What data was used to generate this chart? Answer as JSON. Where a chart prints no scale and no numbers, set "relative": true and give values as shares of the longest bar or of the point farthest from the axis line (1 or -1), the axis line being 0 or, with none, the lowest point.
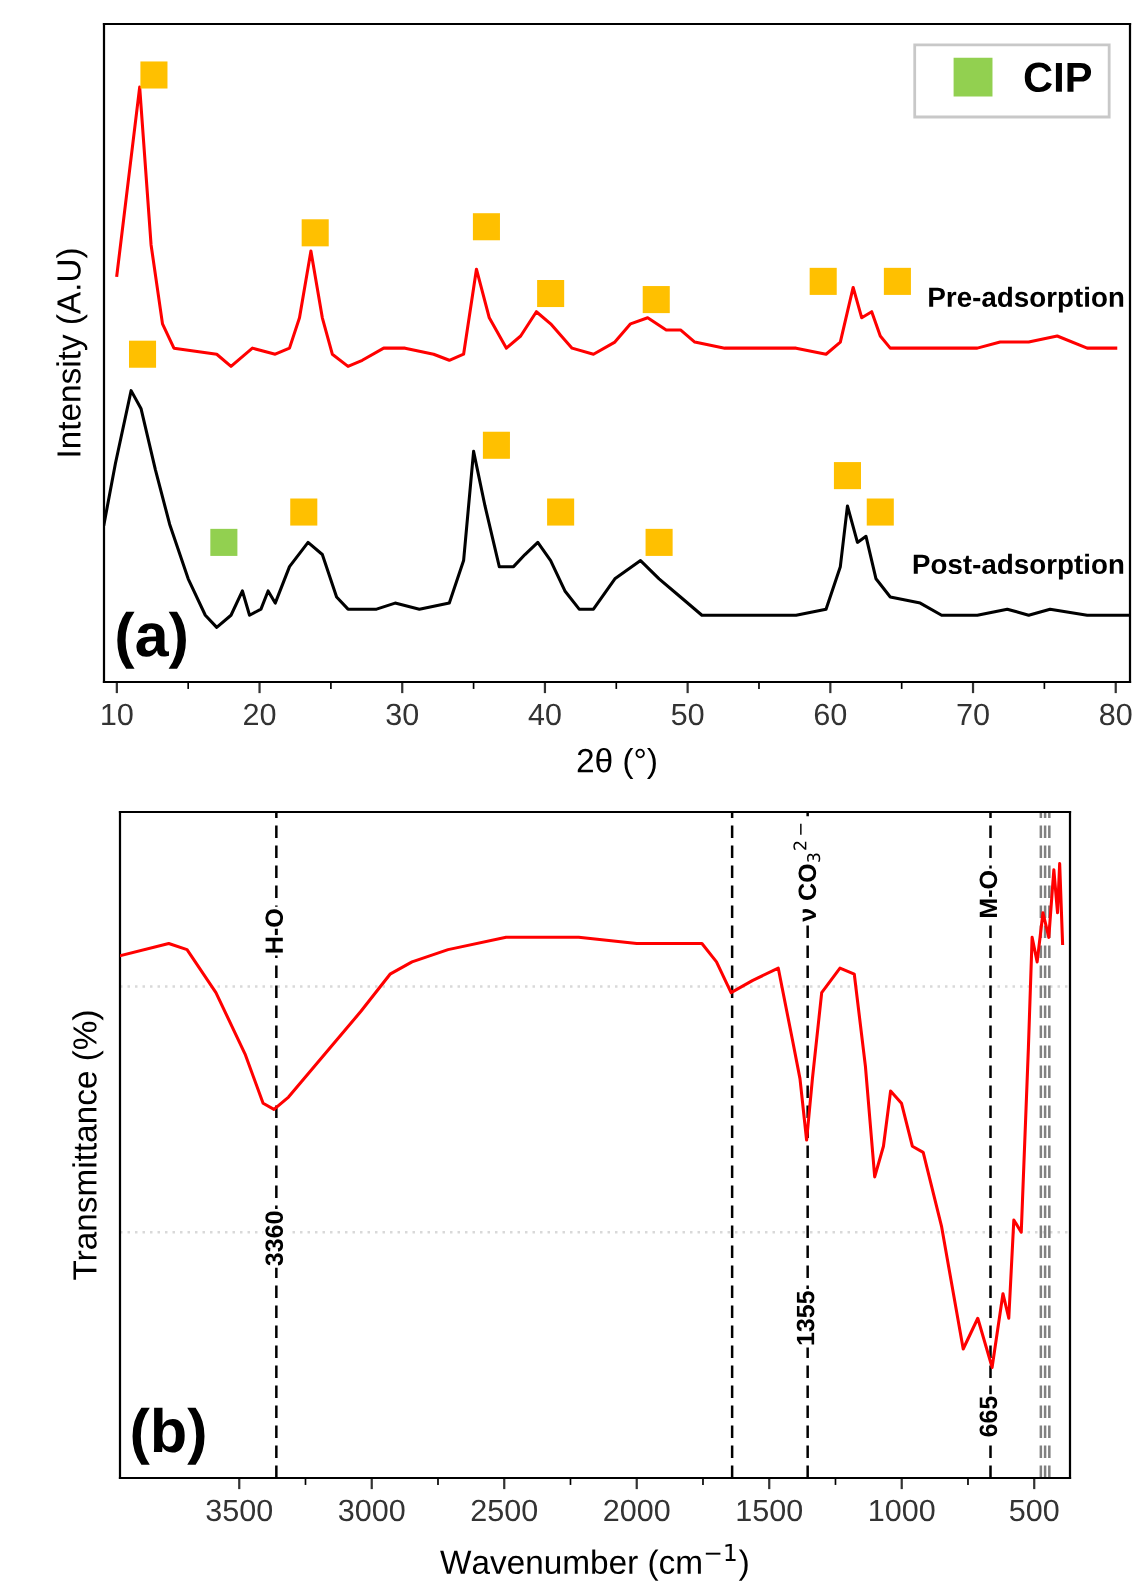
{
  "chart_data": [
    {
      "type": "line",
      "relative": true,
      "xlabel": "2θ (°)",
      "ylabel": "Intensity (A.U)",
      "xlim": [
        9.1,
        81
      ],
      "xticks": [
        10,
        20,
        30,
        40,
        50,
        60,
        70,
        80
      ],
      "legend": "top right",
      "annotations": [
        "(a)"
      ],
      "series": [
        {
          "name": "Pre-adsorption",
          "color": "#ff0000",
          "x": [
            10.0,
            11.6,
            12.4,
            13.2,
            14.0,
            17.0,
            18.0,
            19.5,
            21.1,
            22.1,
            22.8,
            23.6,
            24.4,
            25.1,
            26.2,
            27.2,
            28.7,
            30.2,
            32.2,
            33.3,
            34.3,
            35.2,
            36.1,
            37.3,
            38.3,
            39.4,
            40.4,
            41.9,
            43.4,
            44.9,
            46.0,
            47.2,
            48.5,
            49.5,
            50.5,
            52.6,
            55.1,
            57.6,
            59.7,
            60.7,
            61.2,
            61.6,
            62.2,
            62.9,
            63.5,
            64.2,
            66.8,
            67.8,
            70.3,
            71.9,
            73.9,
            75.9,
            78.0,
            80.0
          ],
          "values": [
            0.67,
            0.98,
            0.72,
            0.59,
            0.55,
            0.54,
            0.52,
            0.55,
            0.54,
            0.55,
            0.6,
            0.71,
            0.6,
            0.54,
            0.52,
            0.53,
            0.55,
            0.55,
            0.54,
            0.53,
            0.54,
            0.68,
            0.6,
            0.55,
            0.57,
            0.61,
            0.59,
            0.55,
            0.54,
            0.56,
            0.59,
            0.6,
            0.58,
            0.58,
            0.56,
            0.55,
            0.55,
            0.55,
            0.54,
            0.56,
            0.61,
            0.65,
            0.6,
            0.61,
            0.57,
            0.55,
            0.55,
            0.55,
            0.55,
            0.56,
            0.56,
            0.57,
            0.55,
            0.55
          ]
        },
        {
          "name": "Post-adsorption",
          "color": "#000000",
          "x": [
            9.1,
            9.9,
            11.0,
            11.7,
            12.7,
            13.7,
            15.0,
            16.2,
            17.0,
            18.0,
            18.8,
            19.3,
            20.1,
            20.6,
            21.1,
            22.1,
            23.4,
            24.4,
            25.4,
            26.2,
            28.2,
            29.5,
            31.2,
            33.3,
            34.3,
            35.0,
            35.8,
            36.8,
            37.8,
            38.6,
            39.5,
            40.4,
            41.4,
            42.4,
            43.4,
            44.9,
            46.7,
            48.0,
            49.5,
            51.0,
            53.1,
            55.1,
            57.6,
            59.7,
            60.7,
            61.2,
            61.9,
            62.5,
            63.2,
            64.2,
            66.3,
            67.8,
            70.3,
            72.4,
            73.9,
            75.4,
            78.0,
            81.0
          ],
          "values": [
            0.26,
            0.36,
            0.48,
            0.45,
            0.35,
            0.26,
            0.17,
            0.11,
            0.09,
            0.11,
            0.15,
            0.11,
            0.12,
            0.15,
            0.13,
            0.19,
            0.23,
            0.21,
            0.14,
            0.12,
            0.12,
            0.13,
            0.12,
            0.13,
            0.2,
            0.38,
            0.29,
            0.19,
            0.19,
            0.21,
            0.23,
            0.2,
            0.15,
            0.12,
            0.12,
            0.17,
            0.2,
            0.17,
            0.14,
            0.11,
            0.11,
            0.11,
            0.11,
            0.12,
            0.19,
            0.29,
            0.23,
            0.24,
            0.17,
            0.14,
            0.13,
            0.11,
            0.11,
            0.12,
            0.11,
            0.12,
            0.11,
            0.11
          ]
        },
        {
          "type": "scatter",
          "marker": "square",
          "color": "#ffc000",
          "x": [
            12.6,
            23.9,
            35.9,
            40.4,
            47.8,
            59.5,
            64.7,
            11.8,
            36.6,
            23.1,
            41.1,
            48.0,
            61.2,
            63.5
          ],
          "values": [
            1.0,
            0.74,
            0.75,
            0.64,
            0.63,
            0.66,
            0.66,
            0.54,
            0.39,
            0.28,
            0.28,
            0.23,
            0.34,
            0.28
          ]
        },
        {
          "type": "scatter",
          "marker": "square",
          "name": "CIP",
          "color": "#92d050",
          "x": [
            17.5
          ],
          "values": [
            0.23
          ]
        }
      ]
    },
    {
      "type": "line",
      "relative": true,
      "xlabel": "Wavenumber (cm$^{−1}$)",
      "ylabel": "Transmittance (%)",
      "xlim": [
        3950,
        365
      ],
      "xticks": [
        3500,
        3000,
        2500,
        2000,
        1500,
        1000,
        500
      ],
      "ref_lines": [
        {
          "axis": "y",
          "value": 0.8,
          "color": "#d9d9d9",
          "line_style": "dotted"
        },
        {
          "axis": "y",
          "value": 0.4,
          "color": "#d9d9d9",
          "line_style": "dotted"
        },
        {
          "axis": "x",
          "value": 3360,
          "color": "#000000",
          "line_style": "dashed"
        },
        {
          "axis": "x",
          "value": 1640,
          "color": "#000000",
          "line_style": "dashed"
        },
        {
          "axis": "x",
          "value": 1355,
          "color": "#000000",
          "line_style": "dashed"
        },
        {
          "axis": "x",
          "value": 665,
          "color": "#000000",
          "line_style": "dashed"
        },
        {
          "axis": "x",
          "value": 475,
          "color": "#808080",
          "line_style": "dashed"
        },
        {
          "axis": "x",
          "value": 459,
          "color": "#808080",
          "line_style": "dashed"
        },
        {
          "axis": "x",
          "value": 443,
          "color": "#808080",
          "line_style": "dashed"
        }
      ],
      "annotations": [
        "(b)",
        {
          "text": "H-O",
          "x": 3360,
          "y": 0.89
        },
        {
          "text": "3360",
          "x": 3360,
          "y": 0.39
        },
        {
          "text": "ν CO$_{3}$$^{2−}$",
          "x": 1355,
          "y": 0.99
        },
        {
          "text": "1355",
          "x": 1355,
          "y": 0.26
        },
        {
          "text": "M-O",
          "x": 665,
          "y": 0.95
        },
        {
          "text": "665",
          "x": 665,
          "y": 0.1
        }
      ],
      "series": [
        {
          "color": "#ff0000",
          "x": [
            3950,
            3766,
            3697,
            3588,
            3478,
            3410,
            3369,
            3314,
            3177,
            3040,
            2931,
            2848,
            2712,
            2493,
            2219,
            2000,
            1754,
            1699,
            1644,
            1562,
            1466,
            1411,
            1384,
            1359,
            1337,
            1302,
            1233,
            1179,
            1137,
            1102,
            1069,
            1042,
            1001,
            960,
            919,
            850,
            768,
            713,
            659,
            618,
            596,
            577,
            549,
            522,
            508,
            489,
            467,
            445,
            426,
            412,
            404,
            393
          ],
          "values": [
            0.85,
            0.87,
            0.86,
            0.79,
            0.69,
            0.61,
            0.6,
            0.62,
            0.69,
            0.76,
            0.82,
            0.84,
            0.86,
            0.88,
            0.88,
            0.87,
            0.87,
            0.84,
            0.79,
            0.81,
            0.83,
            0.71,
            0.65,
            0.55,
            0.65,
            0.79,
            0.83,
            0.82,
            0.67,
            0.49,
            0.54,
            0.63,
            0.61,
            0.54,
            0.53,
            0.41,
            0.21,
            0.26,
            0.18,
            0.3,
            0.26,
            0.42,
            0.4,
            0.7,
            0.88,
            0.84,
            0.92,
            0.88,
            0.99,
            0.92,
            1.0,
            0.87
          ]
        }
      ]
    }
  ]
}
